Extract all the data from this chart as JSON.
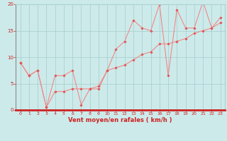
{
  "xlabel": "Vent moyen/en rafales ( km/h )",
  "bg_color": "#cdeaea",
  "grid_color": "#aad0d0",
  "line_color": "#f08888",
  "marker_color": "#e05555",
  "bottom_bar_color": "#cc2222",
  "xlim": [
    -0.5,
    23.5
  ],
  "ylim": [
    0,
    20
  ],
  "xticks": [
    0,
    1,
    2,
    3,
    4,
    5,
    6,
    7,
    8,
    9,
    10,
    11,
    12,
    13,
    14,
    15,
    16,
    17,
    18,
    19,
    20,
    21,
    22,
    23
  ],
  "yticks": [
    0,
    5,
    10,
    15,
    20
  ],
  "series1_x": [
    0,
    1,
    2,
    3,
    4,
    5,
    6,
    7,
    8,
    9,
    10,
    11,
    12,
    13,
    14,
    15,
    16,
    17,
    18,
    19,
    20,
    21,
    22,
    23
  ],
  "series1_y": [
    9.0,
    6.5,
    7.5,
    0.5,
    6.5,
    6.5,
    7.5,
    1.0,
    4.0,
    4.0,
    7.5,
    11.5,
    13.0,
    17.0,
    15.5,
    15.0,
    20.0,
    6.5,
    19.0,
    15.5,
    15.5,
    20.5,
    15.5,
    17.5
  ],
  "series2_x": [
    0,
    1,
    2,
    3,
    4,
    5,
    6,
    7,
    8,
    9,
    10,
    11,
    12,
    13,
    14,
    15,
    16,
    17,
    18,
    19,
    20,
    21,
    22,
    23
  ],
  "series2_y": [
    9.0,
    6.5,
    7.5,
    0.5,
    3.5,
    3.5,
    4.0,
    4.0,
    4.0,
    4.5,
    7.5,
    8.0,
    8.5,
    9.5,
    10.5,
    11.0,
    12.5,
    12.5,
    13.0,
    13.5,
    14.5,
    15.0,
    15.5,
    16.5
  ],
  "xlabel_fontsize": 6,
  "tick_fontsize": 4.5,
  "tick_color": "#cc2222",
  "left_spine_color": "#888888"
}
